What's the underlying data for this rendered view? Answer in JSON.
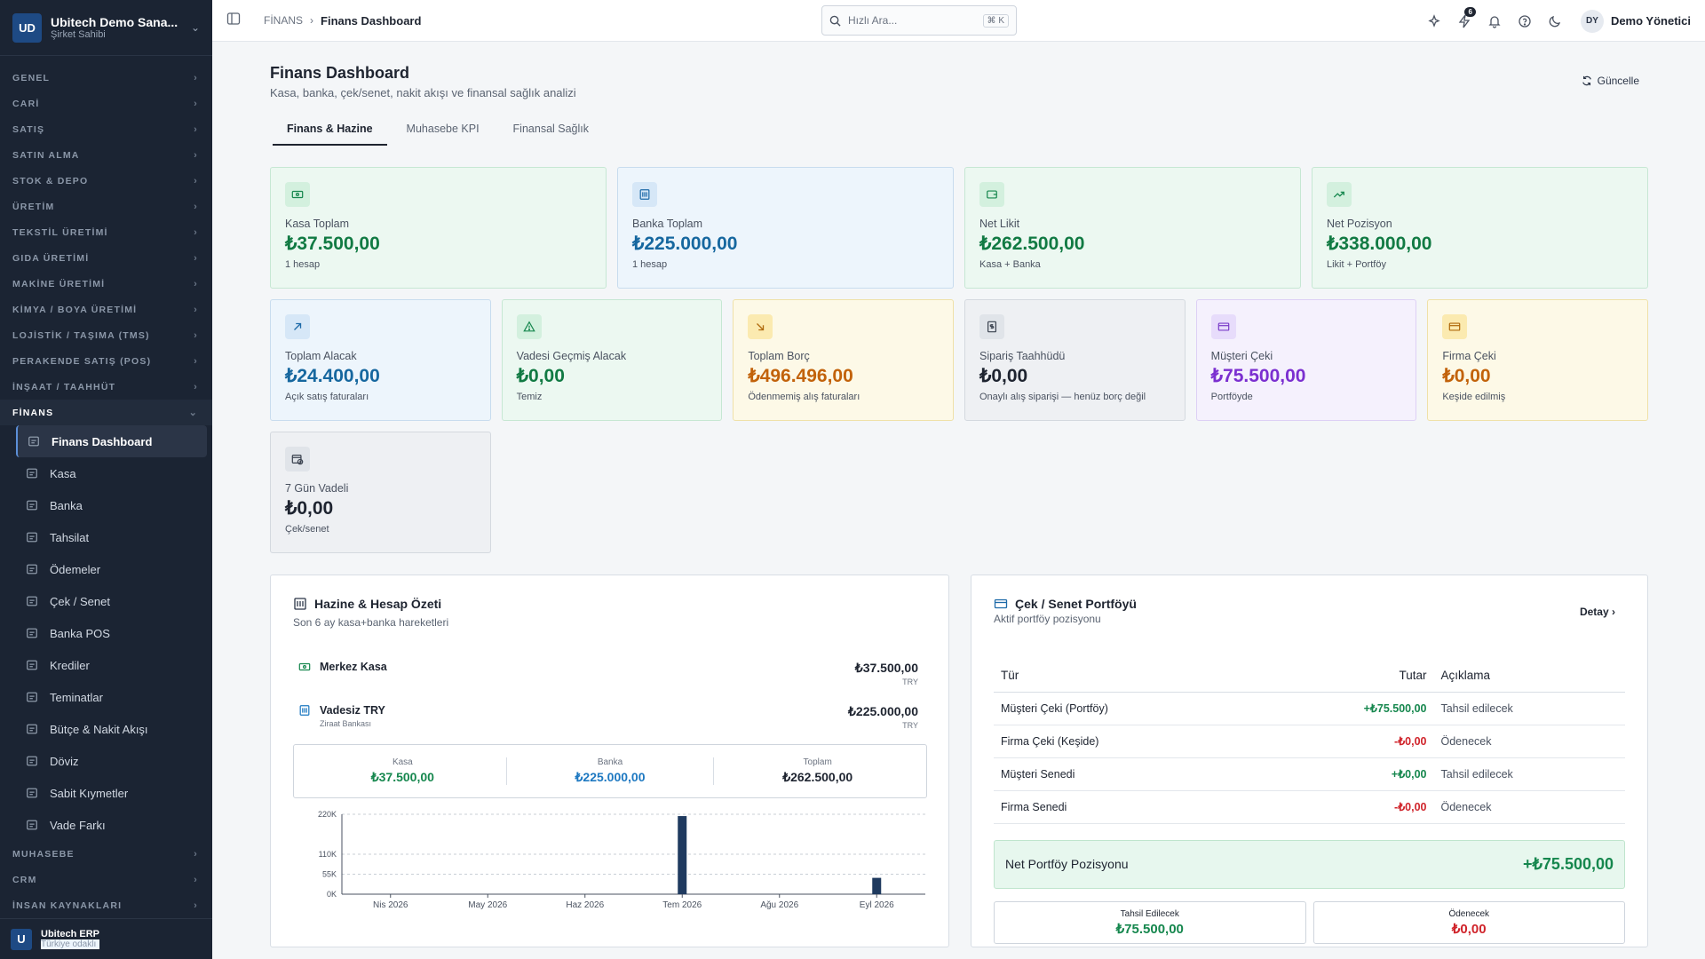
{
  "org": {
    "initials": "UD",
    "name": "Ubitech Demo Sana...",
    "role": "Şirket Sahibi"
  },
  "sidebar": {
    "groups_top": [
      "GENEL",
      "CARİ",
      "SATIŞ",
      "SATIN ALMA",
      "STOK & DEPO",
      "ÜRETİM",
      "TEKSTİL ÜRETİMİ",
      "GIDA ÜRETİMİ",
      "MAKİNE ÜRETİMİ",
      "KİMYA / BOYA ÜRETİMİ",
      "LOJİSTİK / TAŞIMA (TMS)",
      "PERAKENDE SATIŞ (POS)",
      "İNŞAAT / TAAHHÜT"
    ],
    "open_group": "FİNANS",
    "items": [
      "Finans Dashboard",
      "Kasa",
      "Banka",
      "Tahsilat",
      "Ödemeler",
      "Çek / Senet",
      "Banka POS",
      "Krediler",
      "Teminatlar",
      "Bütçe & Nakit Akışı",
      "Döviz",
      "Sabit Kıymetler",
      "Vade Farkı"
    ],
    "groups_bottom": [
      "MUHASEBE",
      "CRM",
      "İNSAN KAYNAKLARI"
    ],
    "footer": {
      "logo": "U",
      "name": "Ubitech ERP",
      "sub": "Türkiye odaklı"
    }
  },
  "topbar": {
    "crumb_parent": "FİNANS",
    "crumb_current": "Finans Dashboard",
    "search_placeholder": "Hızlı Ara...",
    "search_kbd": "⌘ K",
    "notif_count": "6",
    "user_initials": "DY",
    "user_name": "Demo Yönetici"
  },
  "page": {
    "title": "Finans Dashboard",
    "subtitle": "Kasa, banka, çek/senet, nakit akışı ve finansal sağlık analizi",
    "refresh": "Güncelle",
    "tabs": [
      "Finans & Hazine",
      "Muhasebe KPI",
      "Finansal Sağlık"
    ]
  },
  "kpi_row1": [
    {
      "label": "Kasa Toplam",
      "value": "₺37.500,00",
      "sub": "1 hesap",
      "theme": "g",
      "icon": "cash-icon"
    },
    {
      "label": "Banka Toplam",
      "value": "₺225.000,00",
      "sub": "1 hesap",
      "theme": "b",
      "icon": "bank-icon"
    },
    {
      "label": "Net Likit",
      "value": "₺262.500,00",
      "sub": "Kasa + Banka",
      "theme": "g",
      "icon": "wallet-icon"
    },
    {
      "label": "Net Pozisyon",
      "value": "₺338.000,00",
      "sub": "Likit + Portföy",
      "theme": "g",
      "icon": "trend-up-icon"
    }
  ],
  "kpi_row2": [
    {
      "label": "Toplam Alacak",
      "value": "₺24.400,00",
      "sub": "Açık satış faturaları",
      "theme": "b",
      "icon": "arrow-up-right-icon"
    },
    {
      "label": "Vadesi Geçmiş Alacak",
      "value": "₺0,00",
      "sub": "Temiz",
      "theme": "g",
      "icon": "warning-icon"
    },
    {
      "label": "Toplam Borç",
      "value": "₺496.496,00",
      "sub": "Ödenmemiş alış faturaları",
      "theme": "y",
      "icon": "arrow-down-right-icon"
    },
    {
      "label": "Sipariş Taahhüdü",
      "value": "₺0,00",
      "sub": "Onaylı alış siparişi — henüz borç değil",
      "theme": "s",
      "icon": "invoice-icon"
    },
    {
      "label": "Müşteri Çeki",
      "value": "₺75.500,00",
      "sub": "Portföyde",
      "theme": "p",
      "icon": "card-icon"
    },
    {
      "label": "Firma Çeki",
      "value": "₺0,00",
      "sub": "Keşide edilmiş",
      "theme": "y",
      "icon": "card-icon"
    }
  ],
  "kpi_row3": [
    {
      "label": "7 Gün Vadeli",
      "value": "₺0,00",
      "sub": "Çek/senet",
      "theme": "s",
      "icon": "calendar-clock-icon"
    }
  ],
  "treasury": {
    "title": "Hazine & Hesap Özeti",
    "subtitle": "Son 6 ay kasa+banka hareketleri",
    "accounts": [
      {
        "name": "Merkez Kasa",
        "sub": "",
        "amount": "₺37.500,00",
        "cur": "TRY"
      },
      {
        "name": "Vadesiz TRY",
        "sub": "Ziraat Bankası",
        "amount": "₺225.000,00",
        "cur": "TRY"
      }
    ],
    "summary": [
      {
        "label": "Kasa",
        "value": "₺37.500,00",
        "color": "#16874e"
      },
      {
        "label": "Banka",
        "value": "₺225.000,00",
        "color": "#1d78c1"
      },
      {
        "label": "Toplam",
        "value": "₺262.500,00",
        "color": "#1e2430"
      }
    ]
  },
  "chart_data": {
    "type": "bar",
    "categories": [
      "Nis 2026",
      "May 2026",
      "Haz 2026",
      "Tem 2026",
      "Ağu 2026",
      "Eyl 2026"
    ],
    "values": [
      0,
      0,
      0,
      215000,
      0,
      45000
    ],
    "y_ticks": [
      "220K",
      "110K",
      "55K",
      "0K"
    ],
    "y_tick_values": [
      220000,
      110000,
      55000,
      0
    ],
    "ylim": [
      0,
      220000
    ],
    "grid": true,
    "bar_color": "#1f3a5f"
  },
  "portfolio": {
    "title": "Çek / Senet Portföyü",
    "subtitle": "Aktif portföy pozisyonu",
    "detail": "Detay",
    "headers": [
      "Tür",
      "Tutar",
      "Açıklama"
    ],
    "rows": [
      {
        "type": "Müşteri Çeki (Portföy)",
        "amount": "+₺75.500,00",
        "desc": "Tahsil edilecek",
        "sign": "pos"
      },
      {
        "type": "Firma Çeki (Keşide)",
        "amount": "-₺0,00",
        "desc": "Ödenecek",
        "sign": "neg"
      },
      {
        "type": "Müşteri Senedi",
        "amount": "+₺0,00",
        "desc": "Tahsil edilecek",
        "sign": "pos"
      },
      {
        "type": "Firma Senedi",
        "amount": "-₺0,00",
        "desc": "Ödenecek",
        "sign": "neg"
      }
    ],
    "net_label": "Net Portföy Pozisyonu",
    "net_value": "+₺75.500,00",
    "bottom": [
      {
        "label": "Tahsil Edilecek",
        "value": "₺75.500,00",
        "color": "#16874e"
      },
      {
        "label": "Ödenecek",
        "value": "₺0,00",
        "color": "#d0242b"
      }
    ]
  }
}
